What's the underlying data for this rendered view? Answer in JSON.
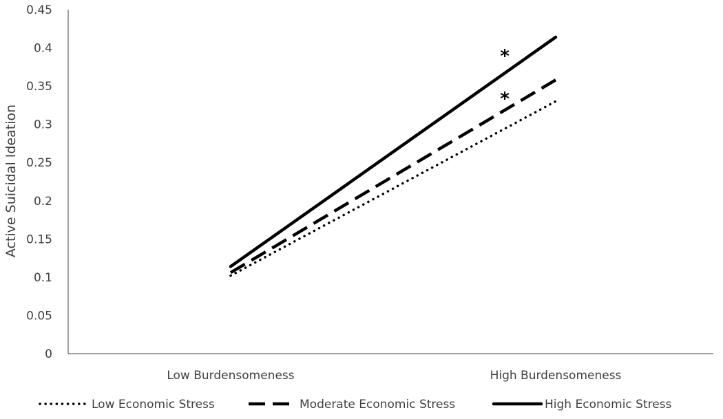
{
  "chart_data": {
    "type": "line",
    "title": "",
    "xlabel": "",
    "ylabel": "Active Suicidal Ideation",
    "categories": [
      "Low Burdensomeness",
      "High Burdensomeness"
    ],
    "ylim": [
      0,
      0.45
    ],
    "yticks": [
      "0",
      "0.05",
      "0.1",
      "0.15",
      "0.2",
      "0.25",
      "0.3",
      "0.35",
      "0.4",
      "0.45"
    ],
    "grid": false,
    "legend_position": "bottom",
    "series": [
      {
        "name": "Low Economic Stress",
        "values": [
          0.102,
          0.33
        ],
        "style": "dotted",
        "color": "#000000"
      },
      {
        "name": "Moderate Economic Stress",
        "values": [
          0.106,
          0.358
        ],
        "style": "dashed",
        "color": "#000000"
      },
      {
        "name": "High Economic Stress",
        "values": [
          0.114,
          0.414
        ],
        "style": "solid",
        "color": "#000000"
      }
    ],
    "annotations": [
      {
        "text": "*",
        "series": "High Economic Stress"
      },
      {
        "text": "*",
        "series": "Moderate Economic Stress"
      }
    ]
  }
}
